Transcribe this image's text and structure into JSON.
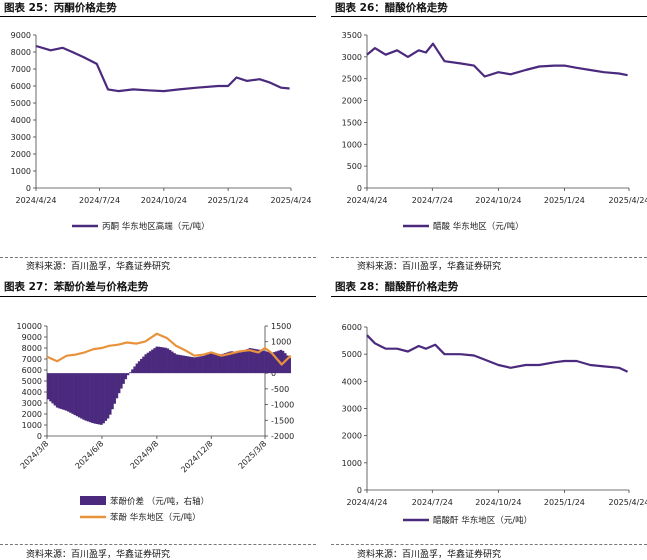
{
  "panels": [
    {
      "title": "图表 25：丙酮价格走势",
      "source": "资料来源：百川盈孚，华鑫证券研究"
    },
    {
      "title": "图表 26：醋酸价格走势",
      "source": "资料来源：百川盈孚，华鑫证券研究"
    },
    {
      "title": "图表 27：苯酚价差与价格走势",
      "source": "资料来源：百川盈孚，华鑫证券研究"
    },
    {
      "title": "图表 28：醋酸酐价格走势",
      "source": "资料来源：百川盈孚，华鑫证券研究"
    }
  ],
  "chart_data": [
    {
      "type": "line",
      "ylim": [
        0,
        9000
      ],
      "yticks": [
        "0",
        "1000",
        "2000",
        "3000",
        "4000",
        "5000",
        "6000",
        "7000",
        "8000",
        "9000"
      ],
      "xticks": [
        "2024/4/24",
        "2024/7/24",
        "2024/10/24",
        "2025/1/24",
        "2025/4/24"
      ],
      "x": [
        "2024-04-24",
        "2024-05-15",
        "2024-06-01",
        "2024-06-15",
        "2024-07-01",
        "2024-07-20",
        "2024-08-05",
        "2024-08-20",
        "2024-09-10",
        "2024-10-01",
        "2024-10-24",
        "2024-11-15",
        "2024-12-10",
        "2025-01-10",
        "2025-01-24",
        "2025-02-05",
        "2025-02-20",
        "2025-03-10",
        "2025-03-25",
        "2025-04-10",
        "2025-04-22"
      ],
      "series": [
        {
          "name": "丙酮 华东地区高端（元/吨）",
          "color": "#4b2a7e",
          "values": [
            8350,
            8100,
            8250,
            8000,
            7700,
            7300,
            5800,
            5700,
            5800,
            5750,
            5700,
            5800,
            5900,
            6000,
            6000,
            6500,
            6300,
            6400,
            6200,
            5900,
            5850
          ]
        }
      ]
    },
    {
      "type": "line",
      "ylim": [
        0,
        3500
      ],
      "yticks": [
        "0",
        "500",
        "1000",
        "1500",
        "2000",
        "2500",
        "3000",
        "3500"
      ],
      "xticks": [
        "2024/4/24",
        "2024/7/24",
        "2024/10/24",
        "2025/1/24",
        "2025/4/24"
      ],
      "x": [
        "2024-04-24",
        "2024-05-05",
        "2024-05-20",
        "2024-06-05",
        "2024-06-20",
        "2024-07-05",
        "2024-07-15",
        "2024-07-25",
        "2024-08-10",
        "2024-09-01",
        "2024-09-20",
        "2024-10-05",
        "2024-10-24",
        "2024-11-10",
        "2024-12-01",
        "2024-12-20",
        "2025-01-10",
        "2025-01-24",
        "2025-02-10",
        "2025-03-01",
        "2025-03-20",
        "2025-04-10",
        "2025-04-22"
      ],
      "series": [
        {
          "name": "醋酸 华东地区（元/吨）",
          "color": "#4b2a7e",
          "values": [
            3050,
            3200,
            3050,
            3150,
            3000,
            3150,
            3100,
            3300,
            2900,
            2850,
            2800,
            2550,
            2650,
            2600,
            2700,
            2780,
            2800,
            2800,
            2750,
            2700,
            2650,
            2620,
            2580
          ]
        }
      ]
    },
    {
      "type": "bar+line",
      "ylim": [
        0,
        10000
      ],
      "y2lim": [
        -2000,
        1500
      ],
      "yticks": [
        "0",
        "1000",
        "2000",
        "3000",
        "4000",
        "5000",
        "6000",
        "7000",
        "8000",
        "9000",
        "10000"
      ],
      "y2ticks": [
        "-2000",
        "-1500",
        "-1000",
        "-500",
        "0",
        "500",
        "1000",
        "1500"
      ],
      "xticks": [
        "2024/3/8",
        "2024/6/8",
        "2024/9/8",
        "2024/12/8",
        "2025/3/8"
      ],
      "x": [
        "2024-03-08",
        "2024-03-25",
        "2024-04-10",
        "2024-04-25",
        "2024-05-10",
        "2024-05-25",
        "2024-06-08",
        "2024-06-20",
        "2024-07-05",
        "2024-07-20",
        "2024-08-05",
        "2024-08-20",
        "2024-09-08",
        "2024-09-25",
        "2024-10-10",
        "2024-10-25",
        "2024-11-10",
        "2024-11-25",
        "2024-12-08",
        "2024-12-25",
        "2025-01-10",
        "2025-01-25",
        "2025-02-10",
        "2025-02-25",
        "2025-03-08",
        "2025-03-20",
        "2025-04-05",
        "2025-04-20"
      ],
      "series": [
        {
          "name": "苯酚价差 （元/吨，右轴）",
          "type": "bar",
          "axis": "right",
          "color": "#4b2a7e",
          "values": [
            -800,
            -1100,
            -1200,
            -1350,
            -1500,
            -1600,
            -1650,
            -1400,
            -700,
            -100,
            300,
            600,
            850,
            800,
            600,
            550,
            500,
            550,
            650,
            600,
            700,
            650,
            800,
            750,
            700,
            650,
            750,
            450
          ]
        },
        {
          "name": "苯酚 华东地区（元/吨）",
          "type": "line",
          "axis": "left",
          "color": "#e8923c",
          "values": [
            7200,
            6800,
            7300,
            7400,
            7600,
            7900,
            8000,
            8200,
            8300,
            8500,
            8400,
            8600,
            9300,
            8900,
            8200,
            7800,
            7300,
            7400,
            7600,
            7300,
            7500,
            7700,
            7800,
            7600,
            8000,
            7500,
            6500,
            7300
          ]
        }
      ]
    },
    {
      "type": "line",
      "ylim": [
        0,
        6000
      ],
      "yticks": [
        "0",
        "1000",
        "2000",
        "3000",
        "4000",
        "5000",
        "6000"
      ],
      "xticks": [
        "2024/4/24",
        "2024/7/24",
        "2024/10/24",
        "2025/1/24",
        "2025/4/24"
      ],
      "x": [
        "2024-04-24",
        "2024-05-05",
        "2024-05-20",
        "2024-06-05",
        "2024-06-20",
        "2024-07-05",
        "2024-07-15",
        "2024-07-28",
        "2024-08-10",
        "2024-09-01",
        "2024-09-20",
        "2024-10-05",
        "2024-10-24",
        "2024-11-10",
        "2024-12-01",
        "2024-12-20",
        "2025-01-10",
        "2025-01-24",
        "2025-02-10",
        "2025-03-01",
        "2025-03-20",
        "2025-04-10",
        "2025-04-22"
      ],
      "series": [
        {
          "name": "醋酸酐 华东地区（元/吨）",
          "color": "#4b2a7e",
          "values": [
            5700,
            5400,
            5200,
            5200,
            5100,
            5300,
            5200,
            5350,
            5000,
            5000,
            4950,
            4800,
            4600,
            4500,
            4600,
            4600,
            4700,
            4750,
            4750,
            4600,
            4550,
            4500,
            4350
          ]
        }
      ]
    }
  ]
}
